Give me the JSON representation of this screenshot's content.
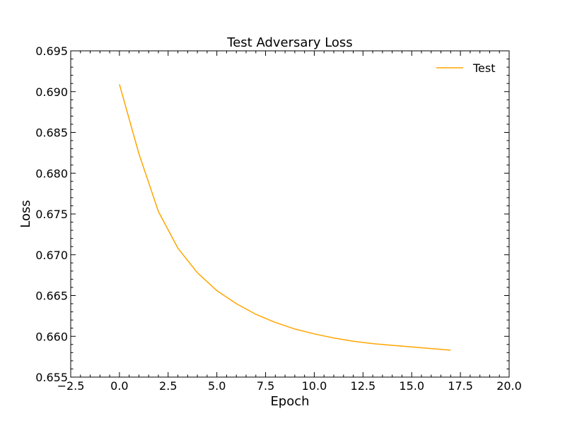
{
  "chart_data": {
    "type": "line",
    "title": "Test Adversary Loss",
    "xlabel": "Epoch",
    "ylabel": "Loss",
    "xlim": [
      -2.5,
      20.0
    ],
    "ylim": [
      0.655,
      0.695
    ],
    "xticks": [
      -2.5,
      0.0,
      2.5,
      5.0,
      7.5,
      10.0,
      12.5,
      15.0,
      17.5,
      20.0
    ],
    "xtick_labels": [
      "−2.5",
      "0.0",
      "2.5",
      "5.0",
      "7.5",
      "10.0",
      "12.5",
      "15.0",
      "17.5",
      "20.0"
    ],
    "yticks": [
      0.655,
      0.66,
      0.665,
      0.67,
      0.675,
      0.68,
      0.685,
      0.69,
      0.695
    ],
    "ytick_labels": [
      "0.655",
      "0.660",
      "0.665",
      "0.670",
      "0.675",
      "0.680",
      "0.685",
      "0.690",
      "0.695"
    ],
    "grid": false,
    "legend_position": "top-right",
    "series": [
      {
        "name": "Test",
        "color": "#ffa500",
        "x": [
          0,
          1,
          2,
          3,
          4,
          5,
          6,
          7,
          8,
          9,
          10,
          11,
          12,
          13,
          14,
          15,
          16,
          17
        ],
        "y": [
          0.6909,
          0.6824,
          0.6753,
          0.6708,
          0.6678,
          0.6656,
          0.664,
          0.6627,
          0.6617,
          0.6609,
          0.6603,
          0.6598,
          0.6594,
          0.6591,
          0.6589,
          0.6587,
          0.6585,
          0.6583
        ]
      }
    ]
  }
}
